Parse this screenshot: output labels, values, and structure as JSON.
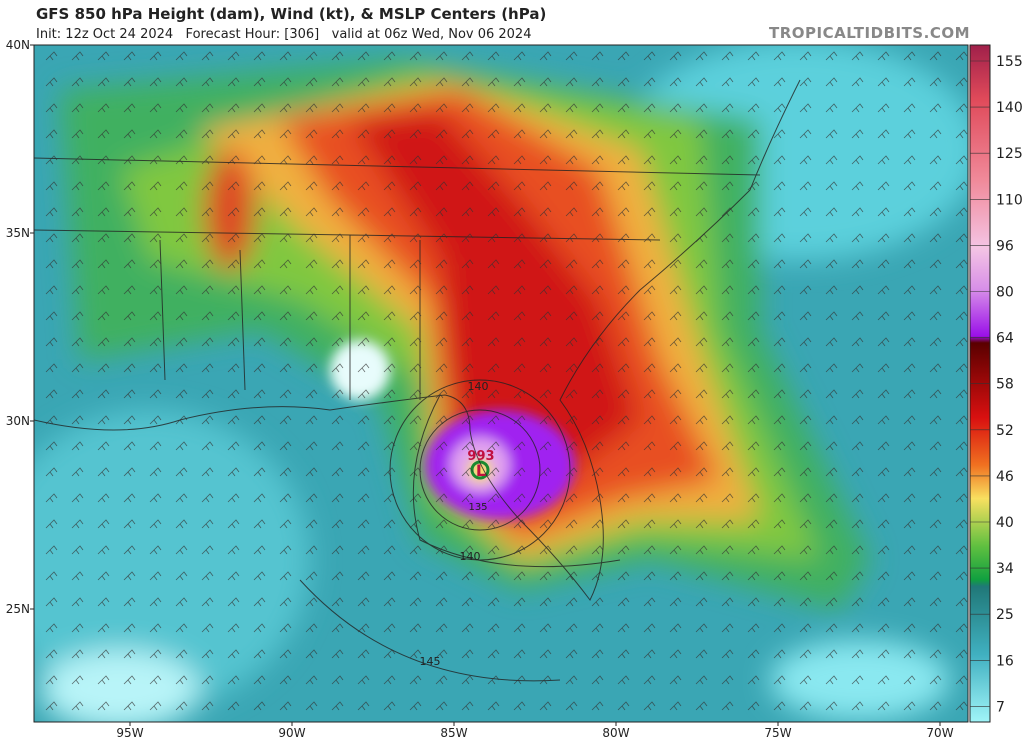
{
  "header": {
    "title": "GFS 850 hPa Height (dam), Wind (kt), & MSLP Centers (hPa)",
    "subtitle": "Init: 12z Oct 24 2024   Forecast Hour: [306]   valid at 06z Wed, Nov 06 2024",
    "watermark": "TROPICALTIDBITS.COM"
  },
  "map": {
    "latitude_labels": [
      "40N",
      "35N",
      "30N",
      "25N"
    ],
    "longitude_labels": [
      "95W",
      "90W",
      "85W",
      "80W",
      "75W",
      "70W"
    ],
    "annotations": [
      "140",
      "140",
      "145",
      "135",
      "993",
      "L"
    ]
  },
  "colorbar": {
    "labels": [
      "155",
      "140",
      "125",
      "110",
      "96",
      "80",
      "64",
      "58",
      "52",
      "46",
      "40",
      "34",
      "25",
      "16",
      "7"
    ]
  }
}
